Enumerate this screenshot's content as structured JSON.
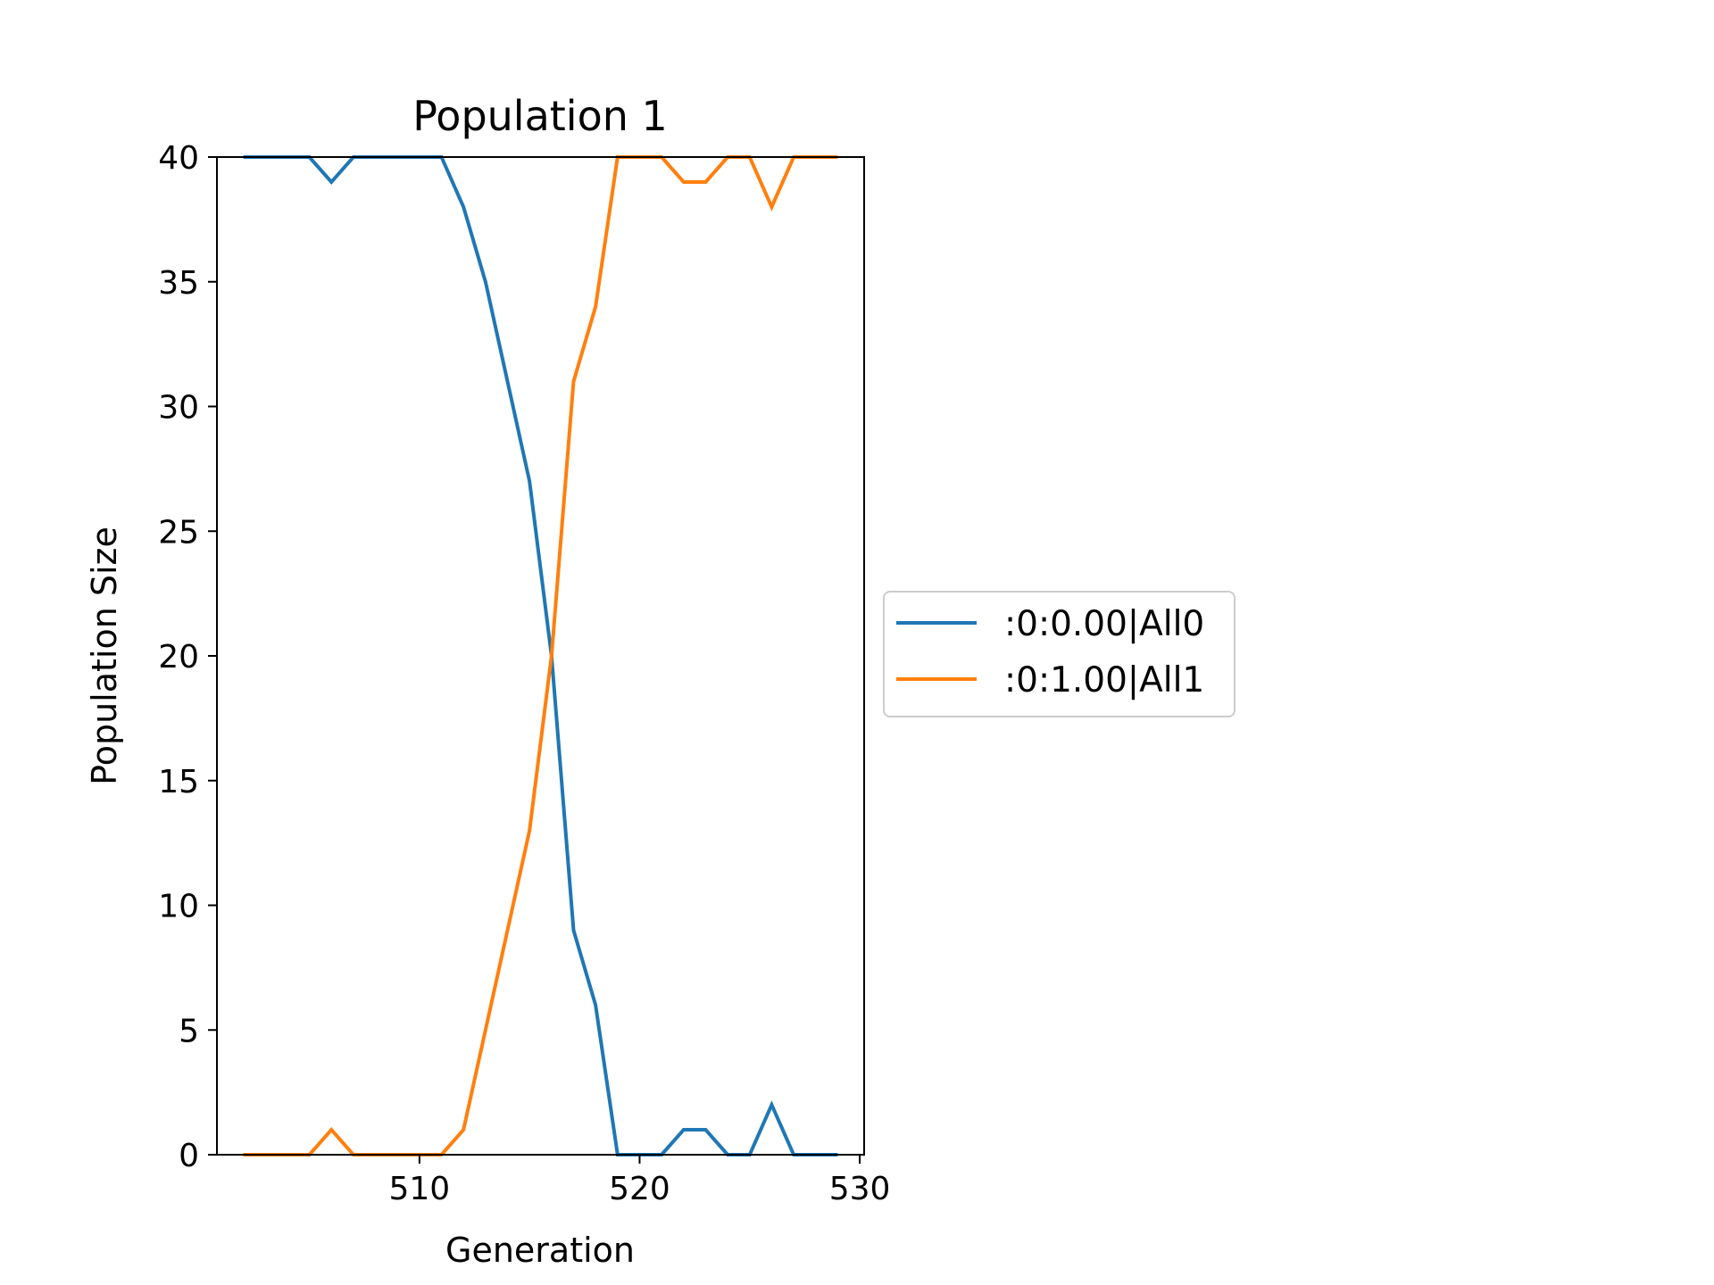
{
  "chart_data": {
    "type": "line",
    "title": "Population 1",
    "xlabel": "Generation",
    "ylabel": "Population Size",
    "xlim": [
      500.8,
      530.2
    ],
    "ylim": [
      0,
      40
    ],
    "xticks": [
      510,
      520,
      530
    ],
    "yticks": [
      0,
      5,
      10,
      15,
      20,
      25,
      30,
      35,
      40
    ],
    "grid": false,
    "legend_position": "center-right-outside",
    "x": [
      502,
      503,
      504,
      505,
      506,
      507,
      508,
      509,
      510,
      511,
      512,
      513,
      514,
      515,
      516,
      517,
      518,
      519,
      520,
      521,
      522,
      523,
      524,
      525,
      526,
      527,
      528,
      529
    ],
    "series": [
      {
        "name": ":0:0.00|All0",
        "color": "#1f77b4",
        "values": [
          40,
          40,
          40,
          40,
          39,
          40,
          40,
          40,
          40,
          40,
          38,
          35,
          31,
          27,
          20,
          9,
          6,
          0,
          0,
          0,
          1,
          1,
          0,
          0,
          2,
          0,
          0,
          0
        ]
      },
      {
        "name": ":0:1.00|All1",
        "color": "#ff7f0e",
        "values": [
          0,
          0,
          0,
          0,
          1,
          0,
          0,
          0,
          0,
          0,
          1,
          5,
          9,
          13,
          20,
          31,
          34,
          40,
          40,
          40,
          39,
          39,
          40,
          40,
          38,
          40,
          40,
          40
        ]
      }
    ]
  }
}
